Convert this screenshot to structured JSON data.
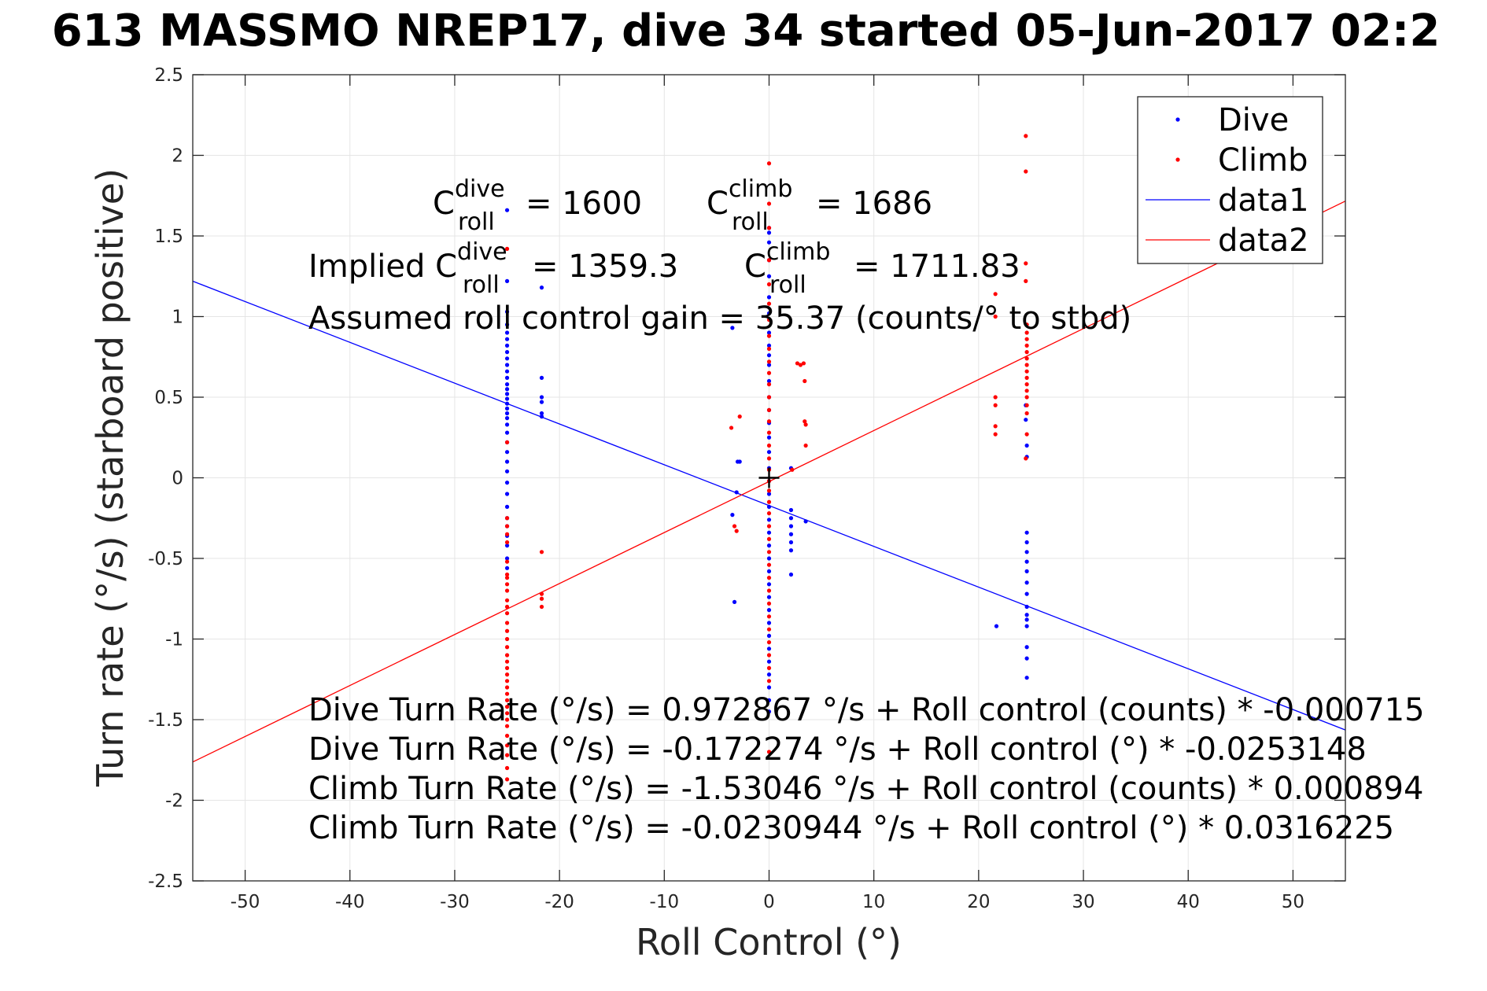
{
  "chart_data": {
    "type": "scatter",
    "title": "613 MASSMO NREP17, dive 34 started 05-Jun-2017 02:2",
    "xlabel": "Roll Control (°)",
    "ylabel": "Turn rate (°/s) (starboard positive)",
    "xlim": [
      -55,
      55
    ],
    "ylim": [
      -2.5,
      2.5
    ],
    "xticks": [
      -50,
      -40,
      -30,
      -20,
      -10,
      0,
      10,
      20,
      30,
      40,
      50
    ],
    "xtick_labels": [
      "-50",
      "-40",
      "-30",
      "-20",
      "-10",
      "0",
      "10",
      "20",
      "30",
      "40",
      "50"
    ],
    "yticks": [
      2.5,
      2,
      1.5,
      1,
      0.5,
      0,
      -0.5,
      -1,
      -1.5,
      -2,
      -2.5
    ],
    "ytick_labels": [
      "2.5",
      "2",
      "1.5",
      "1",
      "0.5",
      "0",
      "-0.5",
      "-1",
      "-1.5",
      "-2",
      "-2.5"
    ],
    "grid": true,
    "legend_position": "top-right",
    "colors": {
      "dive": "#0000ff",
      "climb": "#ff0000",
      "axes": "#262626",
      "grid": "#e5e5e5"
    },
    "series": [
      {
        "name": "Dive",
        "kind": "points",
        "color": "#0000ff",
        "points": [
          [
            -25,
            1.66
          ],
          [
            -25,
            1.22
          ],
          [
            -25,
            1.03
          ],
          [
            -25,
            0.95
          ],
          [
            -25,
            0.9
          ],
          [
            -25,
            0.86
          ],
          [
            -25,
            0.82
          ],
          [
            -25,
            0.78
          ],
          [
            -25,
            0.74
          ],
          [
            -25,
            0.7
          ],
          [
            -25,
            0.66
          ],
          [
            -25,
            0.62
          ],
          [
            -25,
            0.58
          ],
          [
            -25,
            0.55
          ],
          [
            -25,
            0.52
          ],
          [
            -25,
            0.49
          ],
          [
            -25,
            0.46
          ],
          [
            -25,
            0.43
          ],
          [
            -25,
            0.4
          ],
          [
            -25,
            0.37
          ],
          [
            -25,
            0.33
          ],
          [
            -25,
            0.28
          ],
          [
            -25,
            0.22
          ],
          [
            -25,
            0.16
          ],
          [
            -25,
            0.1
          ],
          [
            -25,
            0.04
          ],
          [
            -25,
            -0.03
          ],
          [
            -25,
            -0.1
          ],
          [
            -25,
            -0.18
          ],
          [
            -25,
            -0.25
          ],
          [
            -25,
            -0.3
          ],
          [
            -25,
            -0.36
          ],
          [
            -25,
            -0.42
          ],
          [
            -25,
            -0.5
          ],
          [
            -25,
            -0.56
          ],
          [
            -21.7,
            1.18
          ],
          [
            -21.7,
            0.62
          ],
          [
            -21.7,
            0.5
          ],
          [
            -21.7,
            0.47
          ],
          [
            -21.7,
            0.4
          ],
          [
            -21.7,
            0.38
          ],
          [
            -3.5,
            0.93
          ],
          [
            -3.5,
            -0.23
          ],
          [
            -3.3,
            -0.77
          ],
          [
            -3,
            0.1
          ],
          [
            -2.8,
            0.1
          ],
          [
            -3.1,
            -0.09
          ],
          [
            0,
            1.55
          ],
          [
            0,
            1.52
          ],
          [
            0,
            1.46
          ],
          [
            0,
            1.35
          ],
          [
            0,
            1.25
          ],
          [
            0,
            1.12
          ],
          [
            0,
            1.02
          ],
          [
            0,
            0.9
          ],
          [
            0,
            0.82
          ],
          [
            0,
            0.76
          ],
          [
            0,
            0.7
          ],
          [
            0,
            0.6
          ],
          [
            0,
            0.5
          ],
          [
            0,
            0.42
          ],
          [
            0,
            0.34
          ],
          [
            0,
            0.25
          ],
          [
            0,
            0.16
          ],
          [
            0,
            0.06
          ],
          [
            0,
            -0.02
          ],
          [
            0,
            -0.1
          ],
          [
            0,
            -0.18
          ],
          [
            0,
            -0.26
          ],
          [
            0,
            -0.34
          ],
          [
            0,
            -0.42
          ],
          [
            0,
            -0.5
          ],
          [
            0,
            -0.58
          ],
          [
            0,
            -0.66
          ],
          [
            0,
            -0.74
          ],
          [
            0,
            -0.82
          ],
          [
            0,
            -0.9
          ],
          [
            0,
            -0.98
          ],
          [
            0,
            -1.06
          ],
          [
            0,
            -1.14
          ],
          [
            0,
            -1.22
          ],
          [
            0,
            -1.3
          ],
          [
            0,
            -1.38
          ],
          [
            0,
            -1.45
          ],
          [
            2.1,
            0.06
          ],
          [
            2.1,
            -0.2
          ],
          [
            2.1,
            -0.25
          ],
          [
            2.1,
            -0.3
          ],
          [
            2.1,
            -0.35
          ],
          [
            2.1,
            -0.4
          ],
          [
            2.1,
            -0.45
          ],
          [
            2.1,
            -0.6
          ],
          [
            3.5,
            -0.27
          ],
          [
            21.7,
            -0.92
          ],
          [
            24.5,
            0.45
          ],
          [
            24.5,
            0.36
          ],
          [
            24.6,
            0.2
          ],
          [
            24.6,
            0.13
          ],
          [
            24.6,
            -0.34
          ],
          [
            24.6,
            -0.4
          ],
          [
            24.6,
            -0.46
          ],
          [
            24.6,
            -0.52
          ],
          [
            24.6,
            -0.58
          ],
          [
            24.6,
            -0.65
          ],
          [
            24.6,
            -0.72
          ],
          [
            24.6,
            -0.8
          ],
          [
            24.6,
            -0.85
          ],
          [
            24.6,
            -0.88
          ],
          [
            24.6,
            -0.92
          ],
          [
            24.6,
            -1.05
          ],
          [
            24.6,
            -1.12
          ],
          [
            24.6,
            -1.24
          ]
        ]
      },
      {
        "name": "Climb",
        "kind": "points",
        "color": "#ff0000",
        "points": [
          [
            -25,
            1.42
          ],
          [
            -25,
            0.22
          ],
          [
            -25,
            -0.25
          ],
          [
            -25,
            -0.3
          ],
          [
            -25,
            -0.35
          ],
          [
            -25,
            -0.4
          ],
          [
            -25,
            -0.52
          ],
          [
            -25,
            -0.6
          ],
          [
            -25,
            -0.62
          ],
          [
            -25,
            -0.66
          ],
          [
            -25,
            -0.7
          ],
          [
            -25,
            -0.76
          ],
          [
            -25,
            -0.8
          ],
          [
            -25,
            -0.84
          ],
          [
            -25,
            -0.9
          ],
          [
            -25,
            -0.95
          ],
          [
            -25,
            -1.0
          ],
          [
            -25,
            -1.05
          ],
          [
            -25,
            -1.1
          ],
          [
            -25,
            -1.14
          ],
          [
            -25,
            -1.18
          ],
          [
            -25,
            -1.22
          ],
          [
            -25,
            -1.26
          ],
          [
            -25,
            -1.3
          ],
          [
            -25,
            -1.34
          ],
          [
            -25,
            -1.38
          ],
          [
            -25,
            -1.42
          ],
          [
            -25,
            -1.46
          ],
          [
            -25,
            -1.5
          ],
          [
            -25,
            -1.54
          ],
          [
            -25,
            -1.6
          ],
          [
            -25,
            -1.66
          ],
          [
            -25,
            -1.72
          ],
          [
            -25,
            -1.8
          ],
          [
            -25,
            -1.87
          ],
          [
            -21.7,
            -0.46
          ],
          [
            -21.7,
            -0.72
          ],
          [
            -21.7,
            -0.75
          ],
          [
            -21.7,
            -0.8
          ],
          [
            -3.6,
            0.31
          ],
          [
            -3.3,
            -0.3
          ],
          [
            -3.1,
            -0.33
          ],
          [
            -2.8,
            0.38
          ],
          [
            0,
            1.95
          ],
          [
            0,
            1.7
          ],
          [
            0,
            1.55
          ],
          [
            0,
            1.35
          ],
          [
            0,
            1.2
          ],
          [
            0,
            1.08
          ],
          [
            0,
            0.98
          ],
          [
            0,
            0.88
          ],
          [
            0,
            0.8
          ],
          [
            0,
            0.72
          ],
          [
            0,
            0.65
          ],
          [
            0,
            0.58
          ],
          [
            0,
            0.5
          ],
          [
            0,
            0.42
          ],
          [
            0,
            0.35
          ],
          [
            0,
            0.28
          ],
          [
            0,
            0.2
          ],
          [
            0,
            0.12
          ],
          [
            0,
            0.05
          ],
          [
            0,
            -0.02
          ],
          [
            0,
            -0.08
          ],
          [
            0,
            -0.15
          ],
          [
            0,
            -0.22
          ],
          [
            0,
            -0.3
          ],
          [
            0,
            -0.38
          ],
          [
            0,
            -0.46
          ],
          [
            0,
            -0.54
          ],
          [
            0,
            -0.62
          ],
          [
            0,
            -0.7
          ],
          [
            0,
            -0.78
          ],
          [
            0,
            -0.86
          ],
          [
            0,
            -0.94
          ],
          [
            0,
            -1.02
          ],
          [
            0,
            -1.1
          ],
          [
            0,
            -1.18
          ],
          [
            0,
            -1.26
          ],
          [
            0,
            -1.7
          ],
          [
            2.2,
            0.05
          ],
          [
            2.7,
            0.71
          ],
          [
            3,
            0.7
          ],
          [
            3.3,
            0.71
          ],
          [
            3.4,
            0.6
          ],
          [
            3.4,
            0.35
          ],
          [
            3.5,
            0.33
          ],
          [
            3.5,
            0.2
          ],
          [
            21.6,
            1.14
          ],
          [
            21.6,
            1.0
          ],
          [
            21.6,
            0.5
          ],
          [
            21.6,
            0.45
          ],
          [
            21.6,
            0.32
          ],
          [
            21.6,
            0.27
          ],
          [
            24.5,
            2.12
          ],
          [
            24.5,
            1.9
          ],
          [
            24.5,
            1.33
          ],
          [
            24.5,
            1.22
          ],
          [
            24.6,
            0.95
          ],
          [
            24.6,
            0.9
          ],
          [
            24.6,
            0.86
          ],
          [
            24.6,
            0.82
          ],
          [
            24.6,
            0.78
          ],
          [
            24.6,
            0.74
          ],
          [
            24.6,
            0.7
          ],
          [
            24.6,
            0.66
          ],
          [
            24.6,
            0.62
          ],
          [
            24.6,
            0.58
          ],
          [
            24.6,
            0.54
          ],
          [
            24.6,
            0.5
          ],
          [
            24.6,
            0.45
          ],
          [
            24.6,
            0.4
          ],
          [
            24.6,
            0.27
          ],
          [
            24.5,
            0.12
          ]
        ]
      },
      {
        "name": "data1",
        "kind": "line",
        "color": "#0000ff",
        "points": [
          [
            -55,
            1.2195
          ],
          [
            55,
            -1.564
          ]
        ]
      },
      {
        "name": "data2",
        "kind": "line",
        "color": "#ff0000",
        "points": [
          [
            -55,
            -1.7623
          ],
          [
            55,
            1.7161
          ]
        ]
      }
    ],
    "marker": {
      "x": 0,
      "y": 0,
      "symbol": "+"
    },
    "annotations": {
      "c_dive_base": "C",
      "c_dive_sup": "dive",
      "c_dive_sub": "roll",
      "c_dive_val": "= 1600",
      "c_climb_base": "C",
      "c_climb_sup": "climb",
      "c_climb_sub": "roll",
      "c_climb_val": "= 1686",
      "implied_prefix": "Implied C",
      "implied_dive_sup": "dive",
      "implied_dive_sub": "roll",
      "implied_dive_val": "= 1359.3",
      "implied_climb_base": "C",
      "implied_climb_sup": "climb",
      "implied_climb_sub": "roll",
      "implied_climb_val": "= 1711.83",
      "gain": "Assumed roll control gain = 35.37 (counts/° to stbd)",
      "eq1": "Dive Turn Rate (°/s) = 0.972867 °/s + Roll control (counts) * -0.000715",
      "eq2": "Dive Turn Rate (°/s) = -0.172274 °/s + Roll control (°) * -0.0253148",
      "eq3": "Climb Turn Rate (°/s) = -1.53046 °/s + Roll control (counts) * 0.000894",
      "eq4": "Climb Turn Rate (°/s) = -0.0230944 °/s + Roll control (°) * 0.0316225"
    }
  }
}
